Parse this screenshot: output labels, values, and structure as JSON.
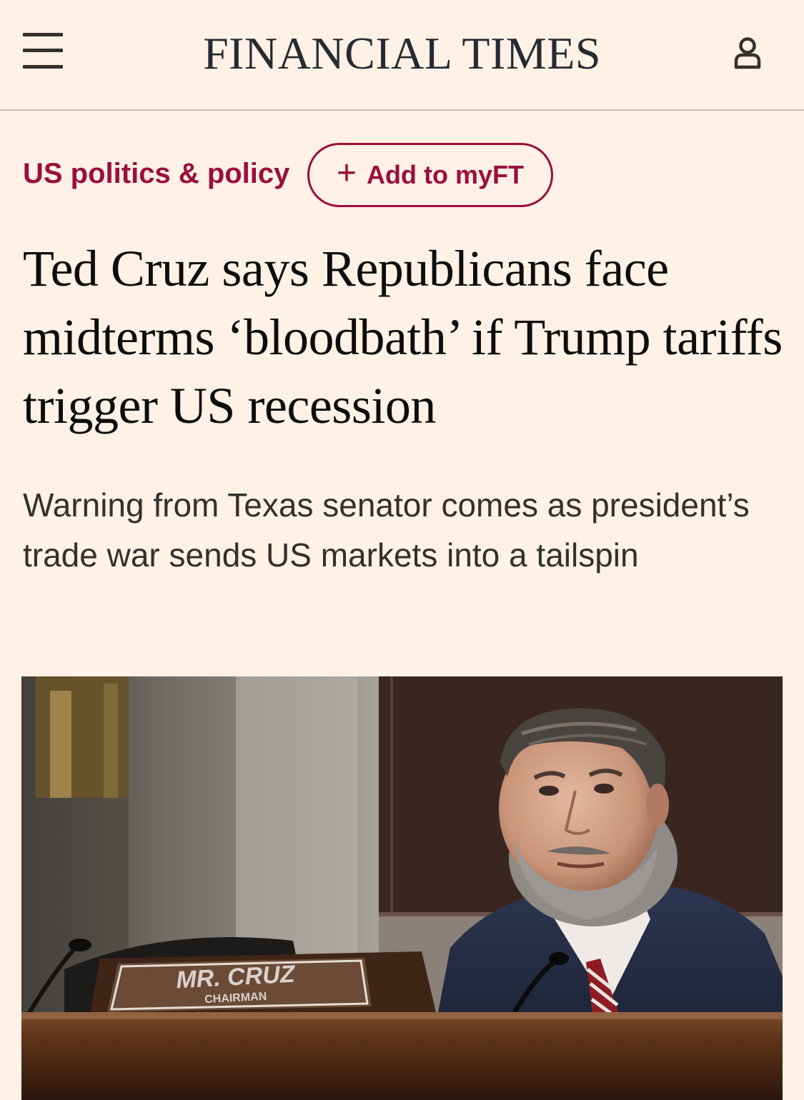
{
  "header": {
    "logo": "FINANCIAL TIMES",
    "menu_icon": "hamburger-menu-icon",
    "account_icon": "user-account-icon"
  },
  "topic": {
    "label": "US politics & policy",
    "follow_label": "Add to myFT",
    "follow_icon": "plus-icon"
  },
  "article": {
    "headline": "Ted Cruz says Republicans face midterms ‘bloodbath’ if Trump tariffs trigger US recession",
    "standfirst": "Warning from Texas senator comes as president’s trade war sends US markets into a tailspin",
    "image": {
      "nameplate_line1": "MR. CRUZ",
      "nameplate_line2": "CHAIRMAN"
    }
  },
  "colors": {
    "page_background": "#fff1e5",
    "accent_claret": "#990f3d",
    "text": "#33302e"
  }
}
